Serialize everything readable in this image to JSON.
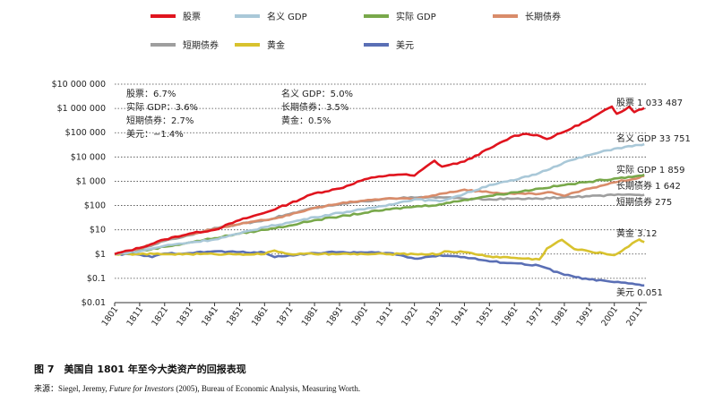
{
  "chart_data": {
    "type": "line",
    "y_scale": "log",
    "ylim": [
      0.01,
      10000000
    ],
    "xlim": [
      1801,
      2014
    ],
    "x_ticks": [
      "1801",
      "1811",
      "1821",
      "1831",
      "1841",
      "1851",
      "1861",
      "1871",
      "1881",
      "1891",
      "1901",
      "1911",
      "1921",
      "1931",
      "1941",
      "1951",
      "1961",
      "1971",
      "1981",
      "1991",
      "2001",
      "2011"
    ],
    "y_ticks": [
      {
        "v": 10000000,
        "label": "$10 000 000"
      },
      {
        "v": 1000000,
        "label": "$1 000 000"
      },
      {
        "v": 100000,
        "label": "$100 000"
      },
      {
        "v": 10000,
        "label": "$10 000"
      },
      {
        "v": 1000,
        "label": "$1 000"
      },
      {
        "v": 100,
        "label": "$100"
      },
      {
        "v": 10,
        "label": "$10"
      },
      {
        "v": 1,
        "label": "$1"
      },
      {
        "v": 0.1,
        "label": "$0.1"
      },
      {
        "v": 0.01,
        "label": "$0.01"
      }
    ],
    "grid": "horizontal dotted",
    "legend_position": "top",
    "series": [
      {
        "name": "股票",
        "color": "#e0141e",
        "end_label": "股票 1 033 487",
        "x": [
          1801,
          1811,
          1821,
          1831,
          1841,
          1851,
          1861,
          1871,
          1881,
          1891,
          1901,
          1911,
          1916,
          1921,
          1929,
          1932,
          1941,
          1951,
          1961,
          1966,
          1970,
          1974,
          1981,
          1991,
          2000,
          2002,
          2007,
          2009,
          2011,
          2013
        ],
        "values": [
          1,
          1.8,
          4,
          7,
          10,
          25,
          50,
          120,
          320,
          500,
          1200,
          1800,
          1900,
          1700,
          7000,
          4000,
          6500,
          22000,
          75000,
          90000,
          80000,
          55000,
          110000,
          350000,
          1200000,
          600000,
          1200000,
          700000,
          900000,
          1033487
        ]
      },
      {
        "name": "名义 GDP",
        "color": "#a9c8d8",
        "end_label": "名义 GDP 33 751",
        "x": [
          1801,
          1811,
          1821,
          1831,
          1841,
          1851,
          1861,
          1871,
          1881,
          1891,
          1901,
          1911,
          1921,
          1931,
          1941,
          1951,
          1961,
          1971,
          1981,
          1991,
          2001,
          2011,
          2013
        ],
        "values": [
          1,
          1.3,
          2.2,
          3,
          4,
          7,
          13,
          20,
          33,
          50,
          70,
          110,
          180,
          150,
          300,
          700,
          1100,
          2200,
          6000,
          12000,
          22000,
          31000,
          33751
        ]
      },
      {
        "name": "实际 GDP",
        "color": "#78a84a",
        "end_label": "实际 GDP 1 859",
        "x": [
          1801,
          1811,
          1821,
          1831,
          1841,
          1851,
          1861,
          1871,
          1881,
          1891,
          1901,
          1911,
          1921,
          1931,
          1941,
          1951,
          1961,
          1971,
          1981,
          1991,
          2001,
          2011,
          2013
        ],
        "values": [
          1,
          1.3,
          2,
          3,
          4.5,
          7,
          10,
          15,
          25,
          35,
          50,
          70,
          90,
          110,
          170,
          250,
          350,
          500,
          700,
          950,
          1300,
          1700,
          1859
        ]
      },
      {
        "name": "长期债券",
        "color": "#d98c6a",
        "end_label": "长期债券 1 642",
        "x": [
          1801,
          1811,
          1821,
          1831,
          1841,
          1851,
          1861,
          1871,
          1881,
          1891,
          1901,
          1911,
          1921,
          1931,
          1941,
          1951,
          1961,
          1971,
          1976,
          1981,
          1991,
          2001,
          2011,
          2013
        ],
        "values": [
          1,
          1.7,
          4,
          6.5,
          11,
          17,
          25,
          40,
          80,
          120,
          160,
          200,
          180,
          300,
          450,
          350,
          300,
          300,
          350,
          250,
          500,
          900,
          1400,
          1642
        ]
      },
      {
        "name": "短期债券",
        "color": "#9e9e9e",
        "end_label": "短期债券 275",
        "x": [
          1801,
          1811,
          1821,
          1831,
          1841,
          1851,
          1861,
          1871,
          1881,
          1891,
          1901,
          1911,
          1921,
          1931,
          1941,
          1951,
          1961,
          1971,
          1981,
          1991,
          2001,
          2011,
          2013
        ],
        "values": [
          1,
          1.6,
          3.5,
          6,
          12,
          17,
          25,
          45,
          80,
          110,
          150,
          200,
          210,
          220,
          190,
          180,
          190,
          190,
          220,
          240,
          270,
          274,
          275
        ]
      },
      {
        "name": "黄金",
        "color": "#d8c22e",
        "end_label": "黄金 3.12",
        "x": [
          1801,
          1811,
          1821,
          1831,
          1841,
          1851,
          1861,
          1865,
          1871,
          1881,
          1891,
          1901,
          1911,
          1921,
          1931,
          1933,
          1941,
          1951,
          1961,
          1971,
          1974,
          1980,
          1985,
          1991,
          2001,
          2011,
          2013
        ],
        "values": [
          1,
          1,
          1,
          1,
          1,
          1,
          1,
          1.4,
          1,
          1,
          1,
          1,
          1,
          1,
          1,
          1.3,
          1.2,
          0.8,
          0.7,
          0.6,
          1.7,
          3.9,
          1.6,
          1.3,
          0.9,
          4,
          3.12
        ]
      },
      {
        "name": "美元",
        "color": "#5a6fb5",
        "end_label": "美元 0.051",
        "x": [
          1801,
          1811,
          1816,
          1821,
          1831,
          1841,
          1851,
          1861,
          1865,
          1871,
          1881,
          1891,
          1901,
          1911,
          1921,
          1931,
          1941,
          1951,
          1961,
          1971,
          1981,
          1991,
          2001,
          2011,
          2013
        ],
        "values": [
          1,
          0.95,
          0.75,
          1.05,
          1.1,
          1.3,
          1.2,
          1.15,
          0.75,
          0.9,
          1.1,
          1.2,
          1.15,
          1.1,
          0.65,
          0.9,
          0.75,
          0.5,
          0.42,
          0.33,
          0.14,
          0.09,
          0.07,
          0.055,
          0.051
        ]
      }
    ],
    "annotations_left": [
      "股票：6.7%",
      "实际 GDP：3.6%",
      "短期债券：2.7%",
      "美元：−1.4%"
    ],
    "annotations_right": [
      "名义 GDP：5.0%",
      "长期债券：3.5%",
      "黄金：0.5%"
    ]
  },
  "caption": "图 7　美国自 1801 年至今大类资产的回报表现",
  "source": {
    "prefix": "来源：Siegel, Jeremy, ",
    "italic": "Future for Investors",
    "suffix": " (2005), Bureau of Economic Analysis, Measuring Worth."
  }
}
